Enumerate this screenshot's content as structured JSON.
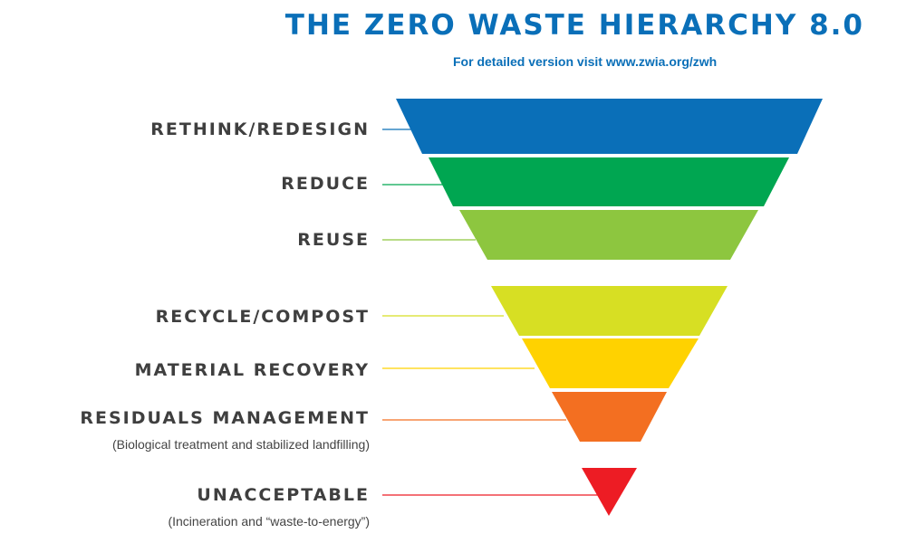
{
  "title": "THE ZERO WASTE HIERARCHY 8.0",
  "subtitle": "For detailed version visit www.zwia.org/zwh",
  "levels": [
    {
      "label": "RETHINK/REDESIGN",
      "note": "",
      "color": "#0a6fb8"
    },
    {
      "label": "REDUCE",
      "note": "",
      "color": "#00a651"
    },
    {
      "label": "REUSE",
      "note": "",
      "color": "#8dc63f"
    },
    {
      "label": "RECYCLE/COMPOST",
      "note": "",
      "color": "#d7df23"
    },
    {
      "label": "MATERIAL RECOVERY",
      "note": "",
      "color": "#ffd200"
    },
    {
      "label": "RESIDUALS MANAGEMENT",
      "note": "(Biological treatment and stabilized landfilling)",
      "color": "#f36f21"
    },
    {
      "label": "UNACCEPTABLE",
      "note": "(Incineration and “waste-to-energy”)",
      "color": "#ed1c24"
    }
  ]
}
